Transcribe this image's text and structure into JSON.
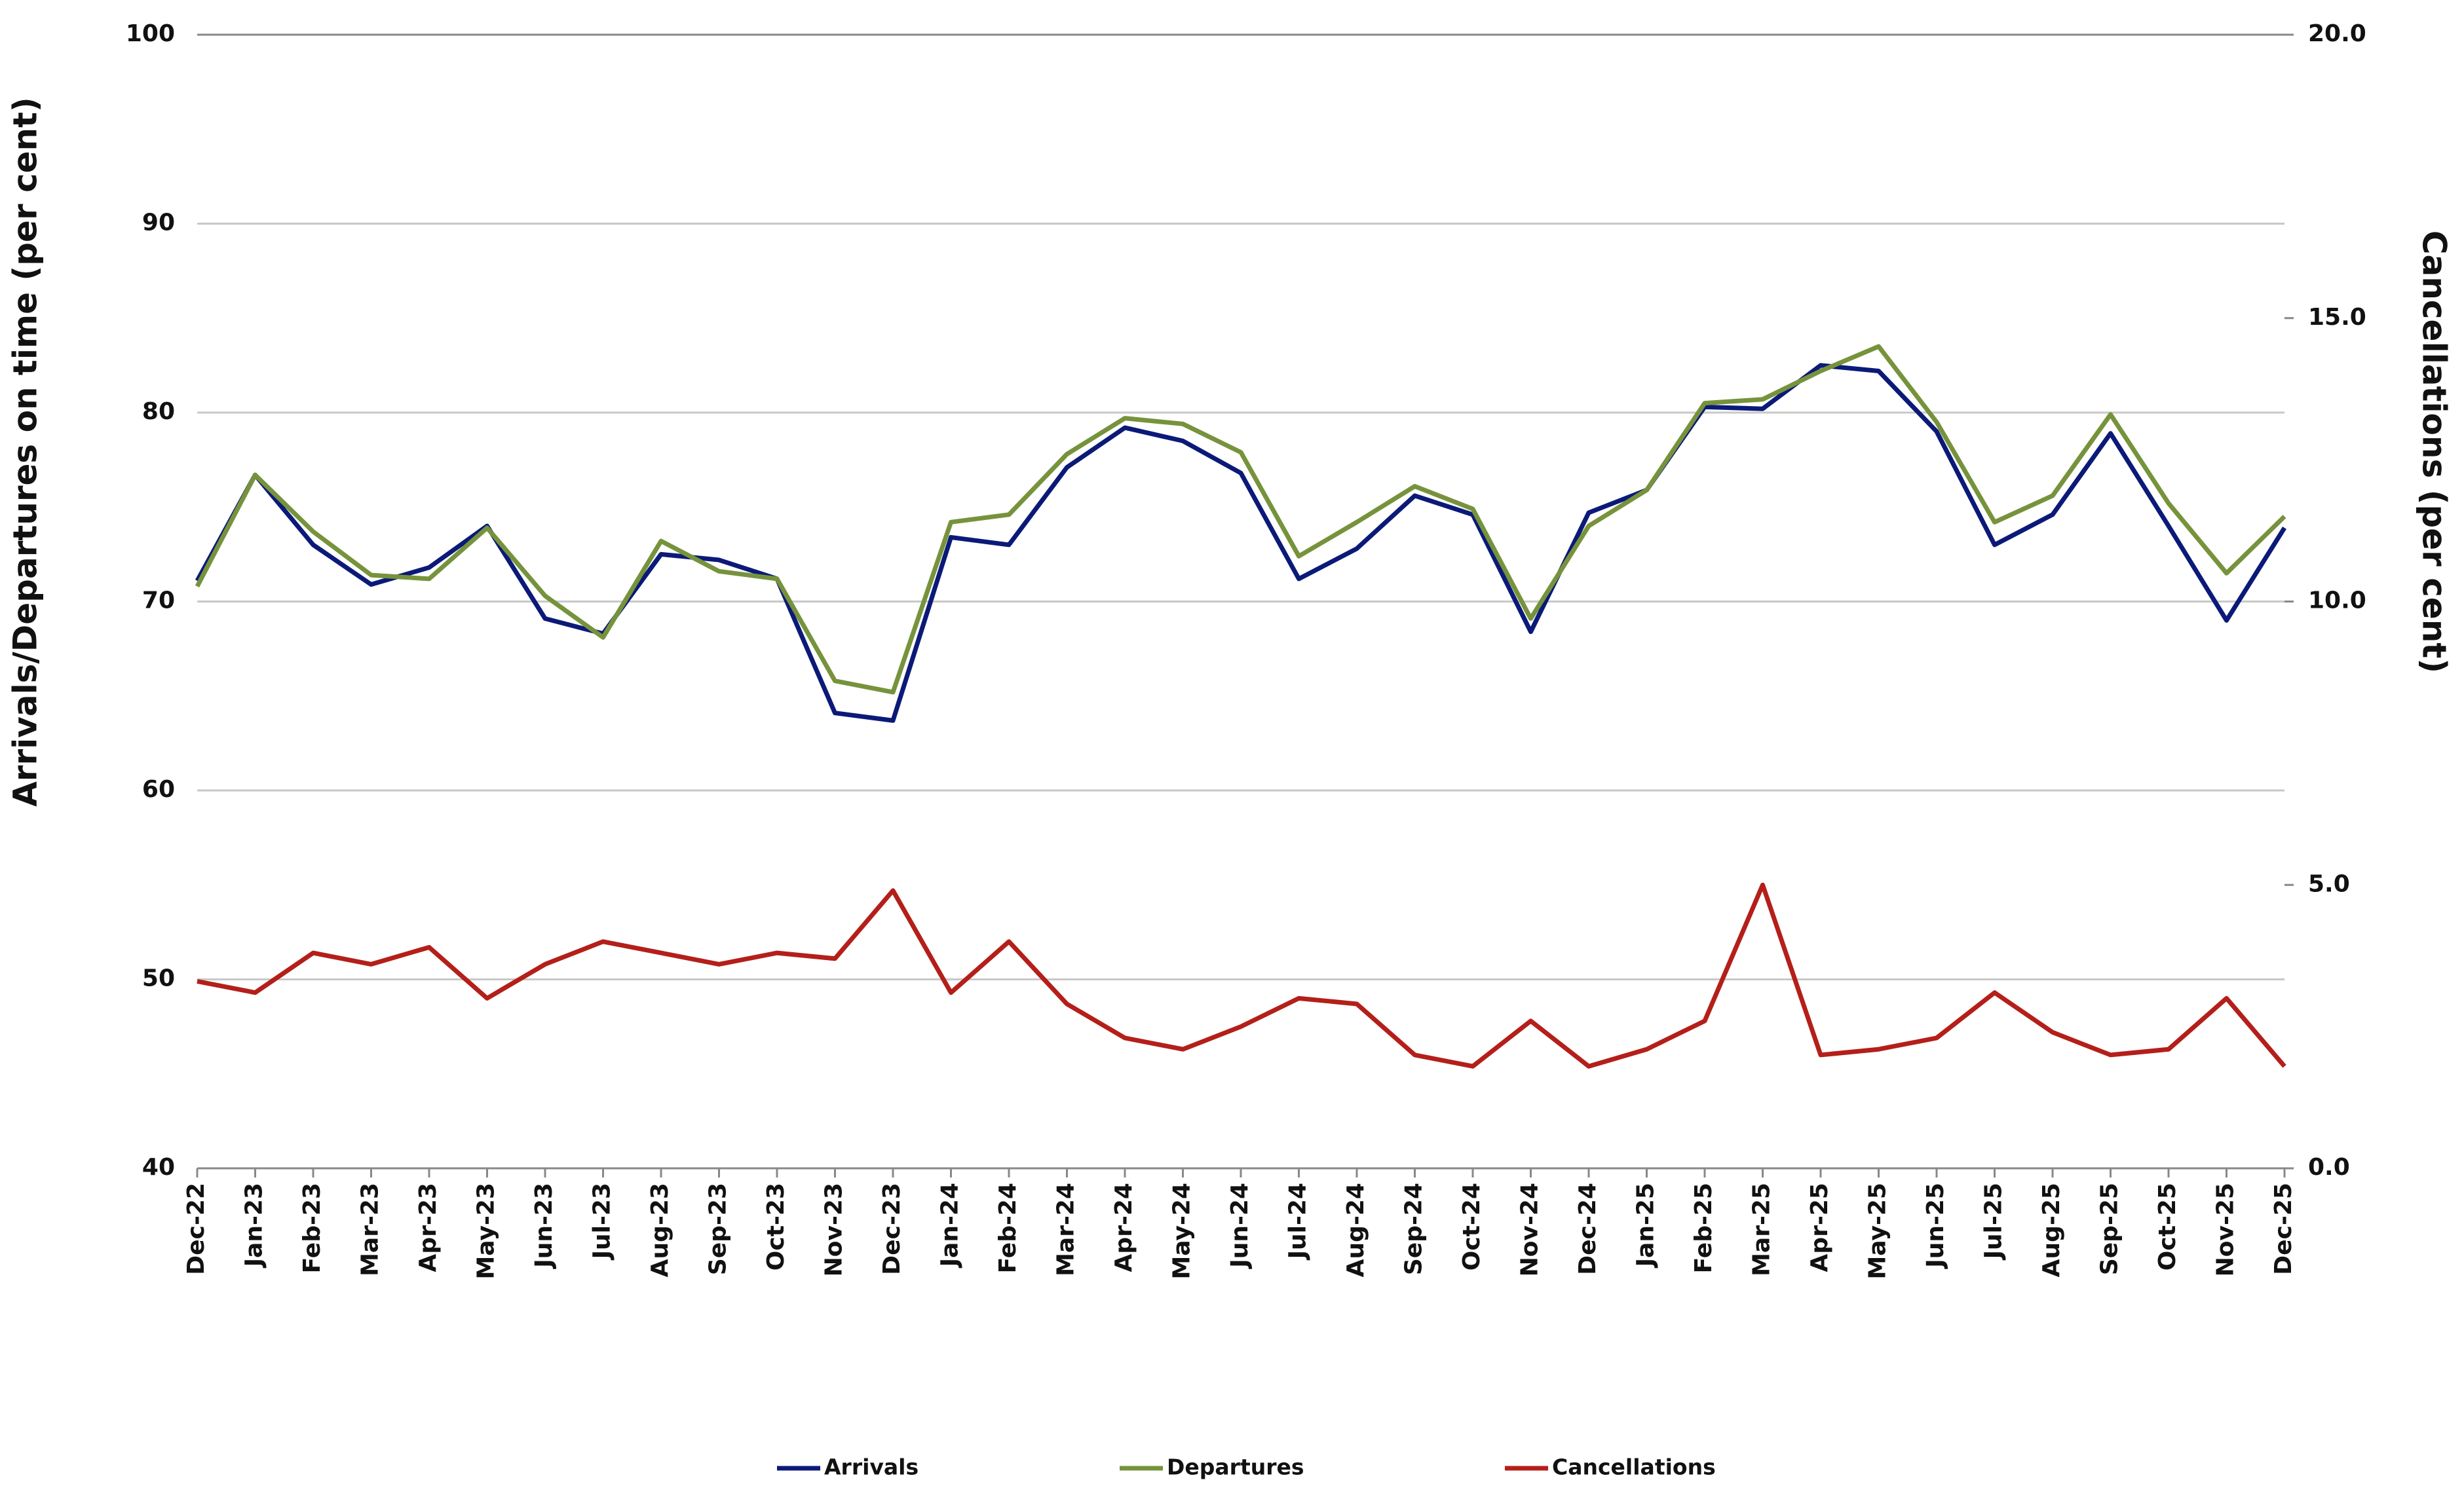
{
  "chart_data": {
    "type": "line",
    "y_label": "Arrivals/Departures on time (per cent)",
    "y2_label": "Cancellations (per cent)",
    "categories": [
      "Dec-22",
      "Jan-23",
      "Feb-23",
      "Mar-23",
      "Apr-23",
      "May-23",
      "Jun-23",
      "Jul-23",
      "Aug-23",
      "Sep-23",
      "Oct-23",
      "Nov-23",
      "Dec-23",
      "Jan-24",
      "Feb-24",
      "Mar-24",
      "Apr-24",
      "May-24",
      "Jun-24",
      "Jul-24",
      "Aug-24",
      "Sep-24",
      "Oct-24",
      "Nov-24",
      "Dec-24",
      "Jan-25",
      "Feb-25",
      "Mar-25",
      "Apr-25",
      "May-25",
      "Jun-25",
      "Jul-25",
      "Aug-25",
      "Sep-25",
      "Oct-25",
      "Nov-25",
      "Dec-25"
    ],
    "series": [
      {
        "name": "Arrivals",
        "color": "#0b1a78",
        "values": [
          71.1,
          76.7,
          73.0,
          70.9,
          71.8,
          74.0,
          69.1,
          68.3,
          72.5,
          72.2,
          71.2,
          64.1,
          63.7,
          73.4,
          73.0,
          77.1,
          79.2,
          78.5,
          76.8,
          71.2,
          72.8,
          75.6,
          74.6,
          68.4,
          74.7,
          75.9,
          80.3,
          80.2,
          82.5,
          82.2,
          79.0,
          73.0,
          74.6,
          78.9,
          74.0,
          69.0,
          73.9
        ]
      },
      {
        "name": "Departures",
        "color": "#76933c",
        "values": [
          70.8,
          76.7,
          73.7,
          71.4,
          71.2,
          73.9,
          70.3,
          68.1,
          73.2,
          71.6,
          71.2,
          65.8,
          65.2,
          74.2,
          74.6,
          77.8,
          79.7,
          79.4,
          77.9,
          72.4,
          74.2,
          76.1,
          74.9,
          69.1,
          74.0,
          75.9,
          80.5,
          80.7,
          82.2,
          83.5,
          79.5,
          74.2,
          75.6,
          79.9,
          75.2,
          71.5,
          74.5
        ]
      },
      {
        "name": "Cancellations",
        "color": "#b41f1a",
        "axis": "y2",
        "values": [
          3.3,
          3.1,
          3.8,
          3.6,
          3.9,
          3.0,
          3.6,
          4.0,
          3.8,
          3.6,
          3.8,
          3.7,
          4.9,
          3.1,
          4.0,
          2.9,
          2.3,
          2.1,
          2.5,
          3.0,
          2.9,
          2.0,
          1.8,
          2.6,
          1.8,
          2.1,
          2.6,
          5.0,
          2.0,
          2.1,
          2.3,
          3.1,
          2.4,
          2.0,
          2.1,
          3.0,
          1.8
        ]
      }
    ],
    "ylim": [
      40,
      100
    ],
    "yticks": [
      40,
      50,
      60,
      70,
      80,
      90,
      100
    ],
    "y2lim": [
      0,
      20
    ],
    "y2ticks": [
      {
        "value": 0,
        "label": "0.0"
      },
      {
        "value": 5,
        "label": "5.0"
      },
      {
        "value": 10,
        "label": "10.0"
      },
      {
        "value": 15,
        "label": "15.0"
      },
      {
        "value": 20,
        "label": "20.0"
      }
    ],
    "grid": true,
    "legend": "bottom"
  }
}
